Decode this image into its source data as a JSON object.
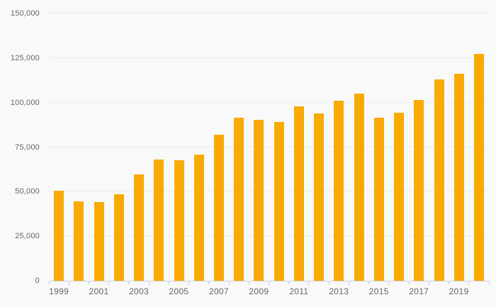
{
  "colors": {
    "background": "#f9f9f9",
    "bar": "#f9ab04",
    "gridline": "#ececec",
    "axis_line": "#c9d0de",
    "label_text": "#63666d"
  },
  "chart_data": {
    "type": "bar",
    "title": "",
    "xlabel": "",
    "ylabel": "",
    "categories": [
      "1999",
      "2000",
      "2001",
      "2002",
      "2003",
      "2004",
      "2005",
      "2006",
      "2007",
      "2008",
      "2009",
      "2010",
      "2011",
      "2012",
      "2013",
      "2014",
      "2015",
      "2016",
      "2017",
      "2018",
      "2019",
      "2020"
    ],
    "values": [
      50500,
      44500,
      44000,
      48500,
      59500,
      68000,
      67500,
      71000,
      82000,
      91500,
      90500,
      89000,
      98000,
      94000,
      101000,
      105000,
      91500,
      94500,
      101500,
      113000,
      116000,
      127500
    ],
    "ylim": [
      0,
      150000
    ],
    "yticks": [
      0,
      25000,
      50000,
      75000,
      100000,
      125000,
      150000
    ],
    "ytick_labels": [
      "0",
      "25,000",
      "50,000",
      "75,000",
      "100,000",
      "125,000",
      "150,000"
    ],
    "xtick_label_every": 2,
    "xtick_labels_shown": [
      "1999",
      "2001",
      "2003",
      "2005",
      "2007",
      "2009",
      "2011",
      "2013",
      "2015",
      "2017",
      "2019"
    ],
    "grid": true,
    "legend": false,
    "bar_color": "#f9ab04"
  }
}
